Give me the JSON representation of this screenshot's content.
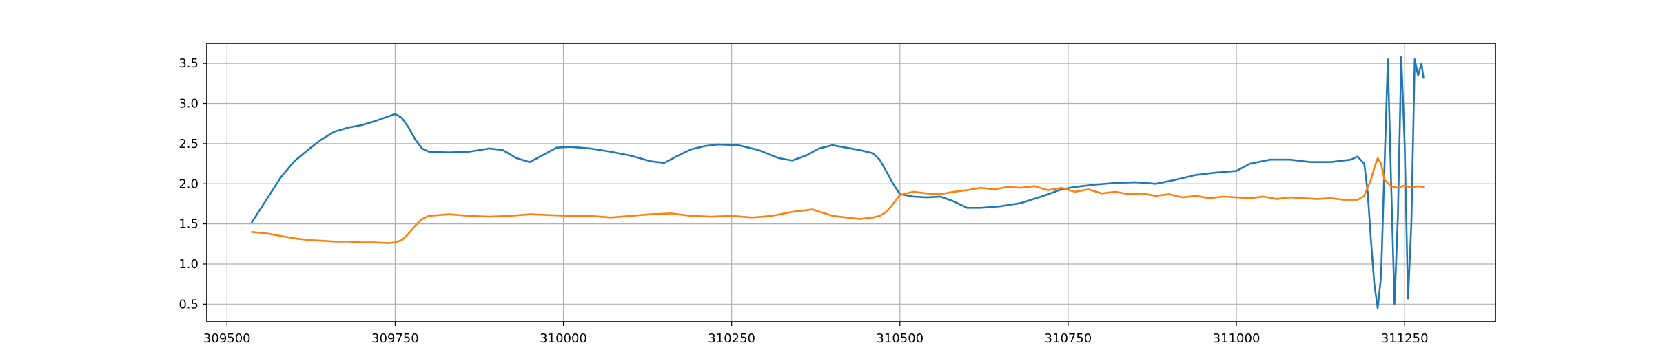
{
  "chart_data": {
    "type": "line",
    "title": "",
    "xlabel": "",
    "ylabel": "",
    "xlim": [
      309470,
      311385
    ],
    "ylim": [
      0.28,
      3.75
    ],
    "grid": true,
    "legend": "none",
    "x_ticks": [
      309500,
      309750,
      310000,
      310250,
      310500,
      310750,
      311000,
      311250
    ],
    "x_tick_labels": [
      "309500",
      "309750",
      "310000",
      "310250",
      "310500",
      "310750",
      "311000",
      "311250"
    ],
    "y_ticks": [
      0.5,
      1.0,
      1.5,
      2.0,
      2.5,
      3.0,
      3.5
    ],
    "y_tick_labels": [
      "0.5",
      "1.0",
      "1.5",
      "2.0",
      "2.5",
      "3.0",
      "3.5"
    ],
    "series": [
      {
        "color": "#1f77b4",
        "x": [
          309537,
          309560,
          309580,
          309600,
          309620,
          309640,
          309660,
          309680,
          309700,
          309720,
          309740,
          309750,
          309760,
          309770,
          309780,
          309790,
          309800,
          309830,
          309860,
          309890,
          309910,
          309930,
          309950,
          309970,
          309990,
          310010,
          310040,
          310070,
          310100,
          310130,
          310150,
          310170,
          310190,
          310210,
          310230,
          310260,
          310290,
          310320,
          310340,
          310360,
          310380,
          310400,
          310420,
          310440,
          310460,
          310470,
          310480,
          310490,
          310500,
          310520,
          310540,
          310560,
          310580,
          310600,
          310620,
          310650,
          310680,
          310710,
          310740,
          310760,
          310790,
          310820,
          310850,
          310880,
          310910,
          310940,
          310970,
          311000,
          311020,
          311050,
          311080,
          311110,
          311140,
          311170,
          311180,
          311190,
          311195,
          311200,
          311205,
          311210,
          311215,
          311220,
          311225,
          311230,
          311235,
          311240,
          311245,
          311250,
          311255,
          311260,
          311265,
          311270,
          311275,
          311278
        ],
        "y": [
          1.52,
          1.82,
          2.08,
          2.28,
          2.42,
          2.55,
          2.65,
          2.7,
          2.73,
          2.78,
          2.84,
          2.87,
          2.82,
          2.7,
          2.55,
          2.44,
          2.4,
          2.39,
          2.4,
          2.44,
          2.42,
          2.32,
          2.27,
          2.36,
          2.45,
          2.46,
          2.44,
          2.4,
          2.35,
          2.28,
          2.26,
          2.35,
          2.43,
          2.47,
          2.49,
          2.48,
          2.42,
          2.32,
          2.29,
          2.35,
          2.44,
          2.48,
          2.45,
          2.42,
          2.38,
          2.3,
          2.15,
          2.0,
          1.87,
          1.84,
          1.83,
          1.84,
          1.78,
          1.7,
          1.7,
          1.72,
          1.76,
          1.84,
          1.93,
          1.96,
          1.99,
          2.01,
          2.02,
          2.0,
          2.05,
          2.11,
          2.14,
          2.16,
          2.25,
          2.3,
          2.3,
          2.27,
          2.27,
          2.3,
          2.34,
          2.25,
          1.9,
          1.3,
          0.75,
          0.45,
          0.85,
          2.2,
          3.55,
          2.0,
          0.5,
          1.6,
          3.58,
          2.5,
          0.57,
          1.5,
          3.55,
          3.35,
          3.5,
          3.32
        ]
      },
      {
        "color": "#ff7f0e",
        "x": [
          309537,
          309560,
          309580,
          309600,
          309620,
          309640,
          309660,
          309680,
          309700,
          309720,
          309740,
          309750,
          309760,
          309770,
          309780,
          309790,
          309800,
          309830,
          309860,
          309890,
          309920,
          309950,
          309980,
          310010,
          310040,
          310070,
          310100,
          310130,
          310160,
          310190,
          310220,
          310250,
          310280,
          310310,
          310340,
          310370,
          310400,
          310420,
          310440,
          310460,
          310470,
          310480,
          310490,
          310500,
          310520,
          310540,
          310560,
          310580,
          310600,
          310620,
          310640,
          310660,
          310680,
          310700,
          310720,
          310740,
          310760,
          310780,
          310800,
          310820,
          310840,
          310860,
          310880,
          310900,
          310920,
          310940,
          310960,
          310980,
          311000,
          311020,
          311040,
          311060,
          311080,
          311100,
          311120,
          311140,
          311160,
          311180,
          311190,
          311200,
          311205,
          311210,
          311215,
          311220,
          311230,
          311240,
          311250,
          311260,
          311270,
          311278
        ],
        "y": [
          1.4,
          1.38,
          1.35,
          1.32,
          1.3,
          1.29,
          1.28,
          1.28,
          1.27,
          1.27,
          1.26,
          1.27,
          1.3,
          1.38,
          1.48,
          1.56,
          1.6,
          1.62,
          1.6,
          1.59,
          1.6,
          1.62,
          1.61,
          1.6,
          1.6,
          1.58,
          1.6,
          1.62,
          1.63,
          1.6,
          1.59,
          1.6,
          1.58,
          1.6,
          1.65,
          1.68,
          1.6,
          1.58,
          1.56,
          1.58,
          1.6,
          1.65,
          1.75,
          1.86,
          1.9,
          1.88,
          1.87,
          1.9,
          1.92,
          1.95,
          1.93,
          1.96,
          1.95,
          1.97,
          1.92,
          1.95,
          1.9,
          1.93,
          1.88,
          1.9,
          1.87,
          1.88,
          1.85,
          1.87,
          1.83,
          1.85,
          1.82,
          1.84,
          1.83,
          1.82,
          1.84,
          1.81,
          1.83,
          1.82,
          1.81,
          1.82,
          1.8,
          1.8,
          1.85,
          2.05,
          2.2,
          2.32,
          2.25,
          2.05,
          1.97,
          1.95,
          1.98,
          1.95,
          1.97,
          1.96
        ]
      }
    ]
  }
}
